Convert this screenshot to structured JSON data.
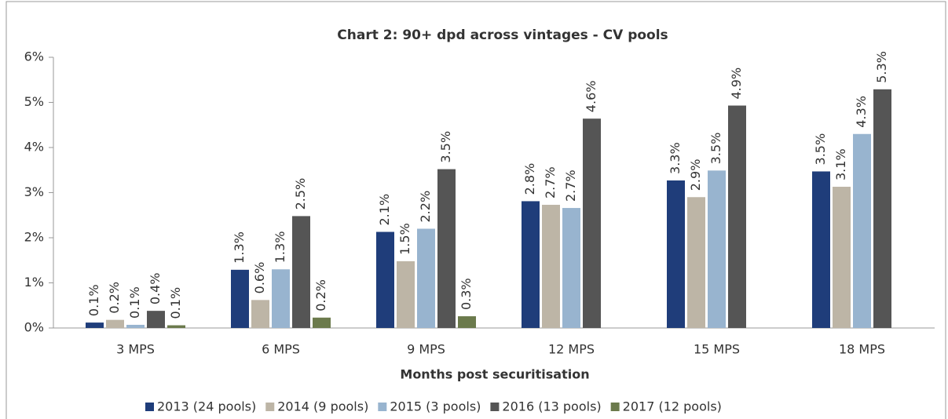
{
  "chart_data": {
    "type": "bar",
    "title": "Chart 2: 90+ dpd across vintages - CV pools",
    "x_label": "Months post securitisation",
    "categories": [
      "3 MPS",
      "6 MPS",
      "9 MPS",
      "12 MPS",
      "15 MPS",
      "18 MPS"
    ],
    "series": [
      {
        "name": "2013 (24 pools)",
        "color": "#1f3d7a",
        "values": [
          0.12,
          1.29,
          2.13,
          2.81,
          3.27,
          3.47
        ],
        "value_labels": [
          "0.1%",
          "1.3%",
          "2.1%",
          "2.8%",
          "3.3%",
          "3.5%"
        ]
      },
      {
        "name": "2014 (9 pools)",
        "color": "#bdb5a6",
        "values": [
          0.18,
          0.62,
          1.48,
          2.73,
          2.9,
          3.13
        ],
        "value_labels": [
          "0.2%",
          "0.6%",
          "1.5%",
          "2.7%",
          "2.9%",
          "3.1%"
        ]
      },
      {
        "name": "2015 (3 pools)",
        "color": "#98b4cf",
        "values": [
          0.07,
          1.3,
          2.2,
          2.66,
          3.49,
          4.3
        ],
        "value_labels": [
          "0.1%",
          "1.3%",
          "2.2%",
          "2.7%",
          "3.5%",
          "4.3%"
        ]
      },
      {
        "name": "2016 (13 pools)",
        "color": "#555555",
        "values": [
          0.38,
          2.48,
          3.52,
          4.64,
          4.93,
          5.29
        ],
        "value_labels": [
          "0.4%",
          "2.5%",
          "3.5%",
          "4.6%",
          "4.9%",
          "5.3%"
        ]
      },
      {
        "name": "2017 (12 pools)",
        "color": "#6b7a4c",
        "values": [
          0.06,
          0.23,
          0.26,
          null,
          null,
          null
        ],
        "value_labels": [
          "0.1%",
          "0.2%",
          "0.3%",
          null,
          null,
          null
        ]
      }
    ],
    "ylim": [
      0,
      6
    ],
    "yticks": [
      {
        "value": 0,
        "label": "0%"
      },
      {
        "value": 1,
        "label": "1%"
      },
      {
        "value": 2,
        "label": "2%"
      },
      {
        "value": 3,
        "label": "3%"
      },
      {
        "value": 4,
        "label": "4%"
      },
      {
        "value": 5,
        "label": "5%"
      },
      {
        "value": 6,
        "label": "6%"
      }
    ],
    "legend": "bottom"
  }
}
